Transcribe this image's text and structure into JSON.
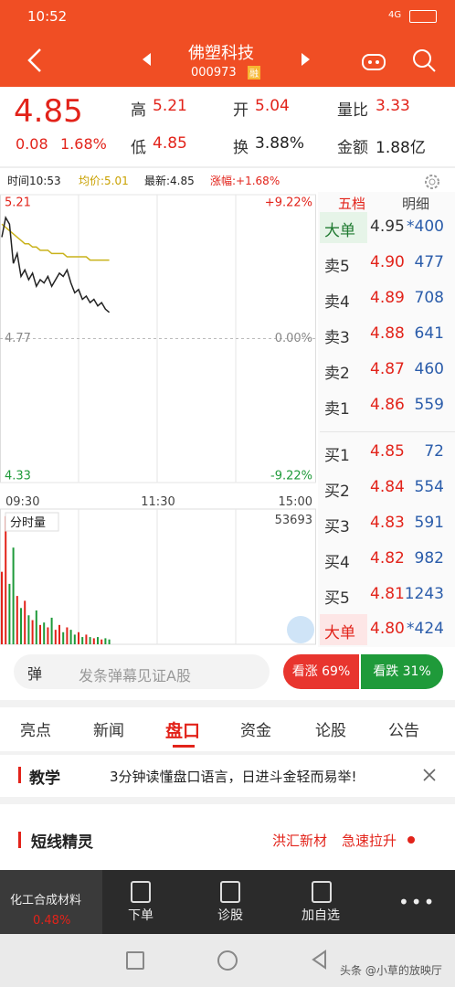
{
  "status": {
    "time": "10:52",
    "network": "4G"
  },
  "header": {
    "name": "佛塑科技",
    "code": "000973",
    "badge": "融"
  },
  "quote": {
    "price": "4.85",
    "change": "0.08",
    "change_pct": "1.68%",
    "stats": [
      {
        "label": "高",
        "value": "5.21"
      },
      {
        "label": "开",
        "value": "5.04"
      },
      {
        "label": "量比",
        "value": "3.33"
      },
      {
        "label": "低",
        "value": "4.85"
      },
      {
        "label": "换",
        "value": "3.88%"
      },
      {
        "label": "金额",
        "value": "1.88亿"
      }
    ]
  },
  "chart_info": {
    "time": "时间10:53",
    "avg": "均价:5.01",
    "latest": "最新:4.85",
    "change": "涨幅:+1.68%"
  },
  "intraday": {
    "ylim": [
      4.33,
      5.21
    ],
    "yticks": [
      5.21,
      4.77,
      4.33
    ],
    "pct_labels": [
      "+9.22%",
      "0.00%",
      "-9.22%"
    ],
    "times": [
      "09:30",
      "11:30",
      "15:00"
    ],
    "prices": [
      5.08,
      5.14,
      5.12,
      5.0,
      5.03,
      4.96,
      4.98,
      4.95,
      4.97,
      4.93,
      4.95,
      4.94,
      4.96,
      4.93,
      4.95,
      4.97,
      4.96,
      4.98,
      4.94,
      4.91,
      4.92,
      4.89,
      4.9,
      4.88,
      4.89,
      4.87,
      4.88,
      4.86,
      4.85
    ],
    "avg": [
      5.12,
      5.11,
      5.1,
      5.09,
      5.08,
      5.07,
      5.06,
      5.06,
      5.05,
      5.05,
      5.04,
      5.04,
      5.04,
      5.03,
      5.03,
      5.03,
      5.03,
      5.02,
      5.02,
      5.02,
      5.02,
      5.02,
      5.02,
      5.01,
      5.01,
      5.01,
      5.01,
      5.01,
      5.01
    ],
    "volume_title": "分时量",
    "volume_ylim": [
      0,
      53693
    ],
    "volume_max_label": "53693",
    "volumes": [
      30000,
      53000,
      25000,
      40000,
      20000,
      15000,
      18000,
      12000,
      10000,
      14000,
      8000,
      9000,
      7000,
      11000,
      6000,
      8000,
      5000,
      7000,
      6000,
      4000,
      5000,
      3000,
      4000,
      3000,
      2500,
      3000,
      2000,
      2500,
      2000
    ]
  },
  "order_book": {
    "tabs": [
      "五档",
      "明细"
    ],
    "rows": [
      [
        "大单",
        "4.95",
        "*400"
      ],
      [
        "卖5",
        "4.90",
        "477"
      ],
      [
        "卖4",
        "4.89",
        "708"
      ],
      [
        "卖3",
        "4.88",
        "641"
      ],
      [
        "卖2",
        "4.87",
        "460"
      ],
      [
        "卖1",
        "4.86",
        "559"
      ],
      [
        "买1",
        "4.85",
        "72"
      ],
      [
        "买2",
        "4.84",
        "554"
      ],
      [
        "买3",
        "4.83",
        "591"
      ],
      [
        "买4",
        "4.82",
        "982"
      ],
      [
        "买5",
        "4.81",
        "1243"
      ],
      [
        "大单",
        "4.80",
        "*424"
      ]
    ]
  },
  "danmu": {
    "icon": "弹",
    "placeholder": "发条弹幕见证A股",
    "up": "看涨 69%",
    "down": "看跌 31%"
  },
  "tabs": [
    "亮点",
    "新闻",
    "盘口",
    "资金",
    "论股",
    "公告"
  ],
  "lesson": {
    "tag": "教学",
    "text": "3分钟读懂盘口语言，日进斗金轻而易举!"
  },
  "spirit": {
    "title": "短线精灵",
    "stock": "洪汇新材",
    "signal": "急速拉升"
  },
  "bottom_nav": {
    "sector": "化工合成材料",
    "sector_pct": "0.48%",
    "items": [
      "下单",
      "诊股",
      "加自选"
    ]
  },
  "watermark": "头条 @小草的放映厅"
}
